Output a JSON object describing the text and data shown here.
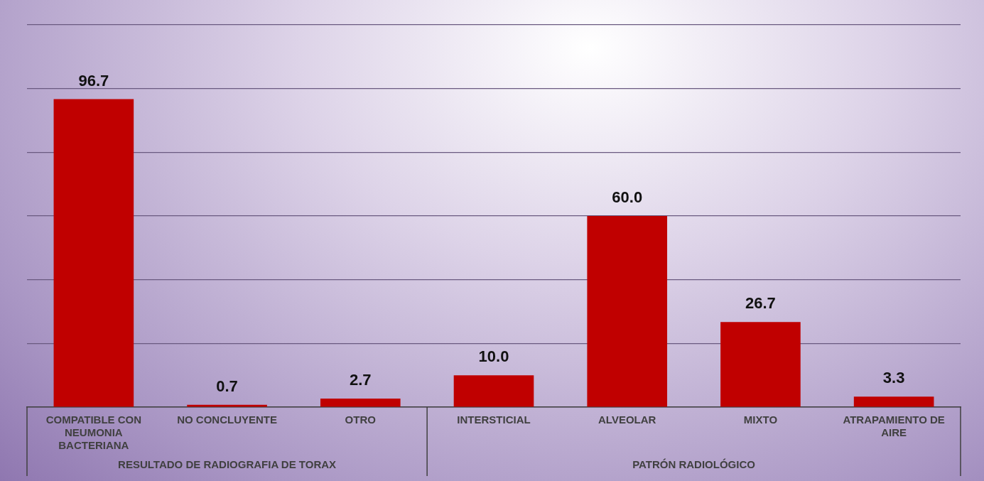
{
  "chart_data": {
    "type": "bar",
    "categories": [
      "COMPATIBLE CON NEUMONIA BACTERIANA",
      "NO CONCLUYENTE",
      "OTRO",
      "INTERSTICIAL",
      "ALVEOLAR",
      "MIXTO",
      "ATRAPAMIENTO DE AIRE"
    ],
    "values": [
      96.7,
      0.7,
      2.7,
      10.0,
      60.0,
      26.7,
      3.3
    ],
    "color": "#c00000",
    "ylim": [
      0,
      120
    ],
    "yticks": [
      {
        "value": 0,
        "label": null
      },
      {
        "value": 20,
        "label": null
      },
      {
        "value": 40,
        "label": null
      },
      {
        "value": 60,
        "label": null
      },
      {
        "value": 80,
        "label": null
      },
      {
        "value": 100,
        "label": null
      },
      {
        "value": 120,
        "label": null
      }
    ],
    "tick_labels": "x",
    "grid": "y",
    "legend": false,
    "value_labels": [
      "96.7",
      "0.7",
      "2.7",
      "10.0",
      "60.0",
      "26.7",
      "3.3"
    ],
    "annotations": [
      "RESULTADO DE RADIOGRAFIA DE TORAX",
      "PATRÓN RADIOLÓGICO"
    ]
  }
}
